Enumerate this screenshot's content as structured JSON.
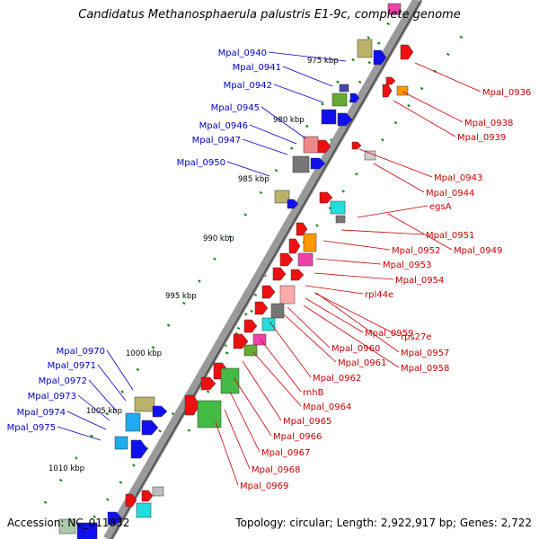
{
  "title": "Candidatus Methanosphaerula palustris E1-9c, complete genome",
  "accession": "Accession: NC_011832",
  "topology": "Topology: circular; Length: 2,922,917 bp; Genes: 2,722",
  "colors": {
    "forward_gene": "#1010ee",
    "reverse_gene": "#ee1010",
    "backbone": "#9a9a9a",
    "tick": "#118811",
    "left_label": "#0000cc",
    "right_label": "#cc0000"
  },
  "scale_labels": [
    "975 kbp",
    "980 kbp",
    "985 kbp",
    "990 kbp",
    "995 kbp",
    "1000 kbp",
    "1005 kbp",
    "1010 kbp"
  ],
  "left_labels": [
    "Mpal_0940",
    "Mpal_0941",
    "Mpal_0942",
    "Mpal_0945",
    "Mpal_0946",
    "Mpal_0947",
    "Mpal_0950",
    "Mpal_0970",
    "Mpal_0971",
    "Mpal_0972",
    "Mpal_0973",
    "Mpal_0974",
    "Mpal_0975"
  ],
  "right_labels": [
    "Mpal_0936",
    "Mpal_0938",
    "Mpal_0939",
    "Mpal_0943",
    "Mpal_0944",
    "egsA",
    "Mpal_0951",
    "Mpal_0949",
    "Mpal_0952",
    "Mpal_0953",
    "Mpal_0954",
    "rpl44e",
    "Mpal_0959",
    "rps27e",
    "Mpal_0960",
    "Mpal_0957",
    "Mpal_0961",
    "Mpal_0958",
    "Mpal_0962",
    "rnhB",
    "Mpal_0964",
    "Mpal_0965",
    "Mpal_0966",
    "Mpal_0967",
    "Mpal_0968",
    "Mpal_0969"
  ]
}
